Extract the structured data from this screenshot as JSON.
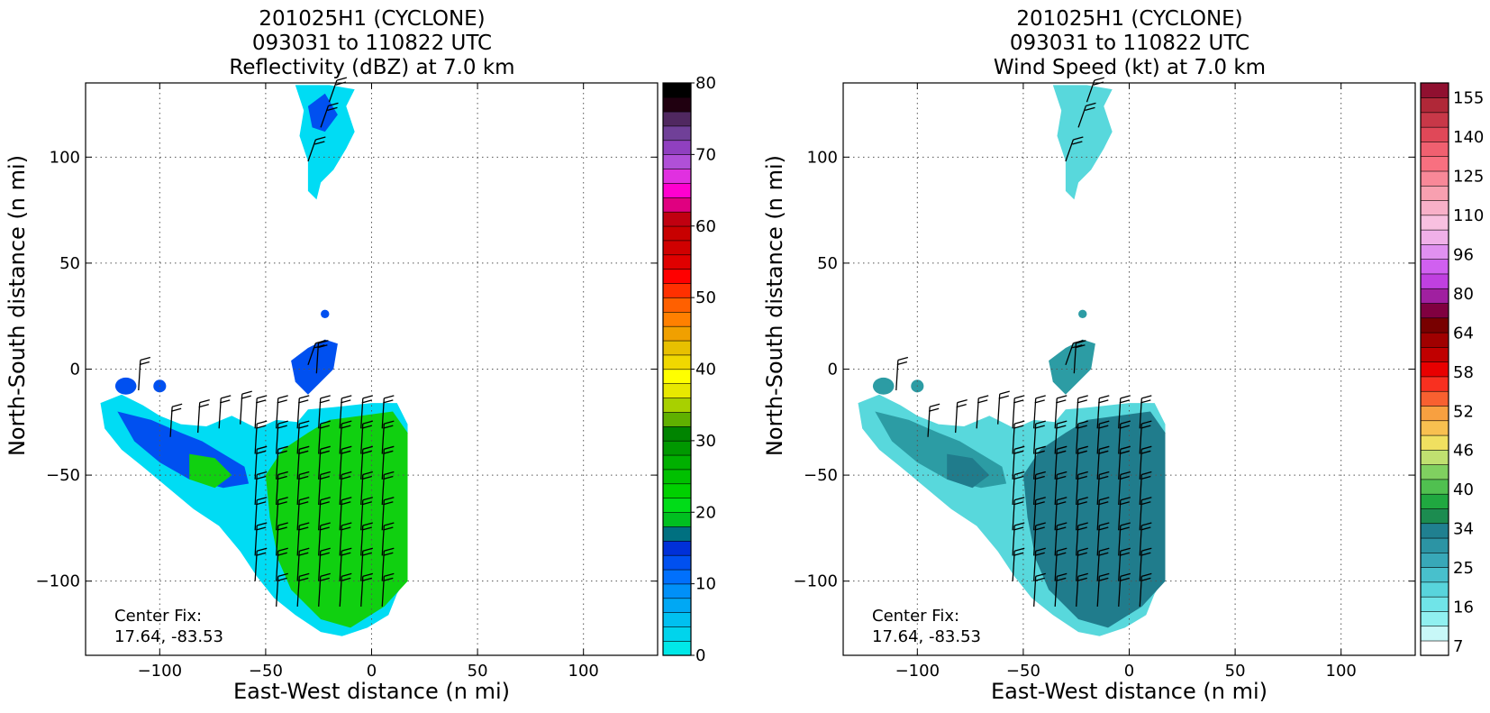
{
  "chart_data": [
    {
      "type": "heatmap",
      "title_lines": [
        "201025H1 (CYCLONE)",
        "093031 to 110822 UTC",
        "Reflectivity (dBZ) at 7.0 km"
      ],
      "xlabel": "East-West distance (n mi)",
      "ylabel": "North-South distance (n mi)",
      "xlim": [
        -135,
        135
      ],
      "ylim": [
        -135,
        135
      ],
      "xticks": [
        -100,
        -50,
        0,
        50,
        100
      ],
      "yticks": [
        -100,
        -50,
        0,
        50,
        100
      ],
      "grid": true,
      "annotation_lines": [
        "Center Fix:",
        "17.64, -83.53"
      ],
      "colorbar": {
        "min": 0,
        "max": 80,
        "step": 2.5,
        "tick_labels": [
          "0",
          "10",
          "20",
          "30",
          "40",
          "50",
          "60",
          "70",
          "80"
        ],
        "tick_values": [
          0,
          10,
          20,
          30,
          40,
          50,
          60,
          70,
          80
        ],
        "colors": [
          "#00e8e8",
          "#00d4ec",
          "#00c0f0",
          "#00a8f4",
          "#0090f8",
          "#0070fc",
          "#0050f0",
          "#0030d8",
          "#007080",
          "#00c020",
          "#00dc18",
          "#00d000",
          "#00c000",
          "#00b000",
          "#009800",
          "#008400",
          "#60b000",
          "#a8d000",
          "#e8e800",
          "#ffff00",
          "#f0d800",
          "#e8c000",
          "#f0a000",
          "#ff8000",
          "#ff6000",
          "#ff3000",
          "#ff0000",
          "#e00000",
          "#d00000",
          "#c80000",
          "#c00010",
          "#e00080",
          "#ff00d0",
          "#e030e0",
          "#b050d8",
          "#9040c0",
          "#704098",
          "#502860",
          "#200010",
          "#000000"
        ]
      },
      "field_colors": {
        "low": "#00dcf4",
        "mid": "#0050f0",
        "high": "#10d010",
        "peak": "#20a020"
      }
    },
    {
      "type": "heatmap",
      "title_lines": [
        "201025H1 (CYCLONE)",
        "093031 to 110822 UTC",
        "Wind Speed (kt) at 7.0 km"
      ],
      "xlabel": "East-West distance (n mi)",
      "ylabel": "North-South distance (n mi)",
      "xlim": [
        -135,
        135
      ],
      "ylim": [
        -135,
        135
      ],
      "xticks": [
        -100,
        -50,
        0,
        50,
        100
      ],
      "yticks": [
        -100,
        -50,
        0,
        50,
        100
      ],
      "grid": true,
      "annotation_lines": [
        "Center Fix:",
        "17.64, -83.53"
      ],
      "colorbar": {
        "tick_labels": [
          "7",
          "16",
          "25",
          "34",
          "40",
          "46",
          "52",
          "58",
          "64",
          "80",
          "96",
          "110",
          "125",
          "140",
          "155"
        ],
        "colors": [
          "#ffffff",
          "#c8f8f8",
          "#90f0f0",
          "#70e4e8",
          "#58d4dc",
          "#48c0cc",
          "#38a8b8",
          "#2c94a4",
          "#208090",
          "#1c8c50",
          "#20a840",
          "#50c050",
          "#80d060",
          "#c0e070",
          "#f0e060",
          "#f8c050",
          "#f8a040",
          "#f86030",
          "#f83020",
          "#e80000",
          "#c00000",
          "#a00000",
          "#780000",
          "#800040",
          "#a020a0",
          "#c040e0",
          "#d060f0",
          "#e090f0",
          "#f0b0e8",
          "#f8c0e0",
          "#f8b0c8",
          "#f8a0b0",
          "#f88898",
          "#f87080",
          "#f06070",
          "#e04858",
          "#c83848",
          "#b02838",
          "#901030"
        ]
      },
      "field_colors": {
        "low": "#58d8dc",
        "mid": "#2c9ca4",
        "high": "#207c8c",
        "peak": "#20a050"
      }
    }
  ]
}
